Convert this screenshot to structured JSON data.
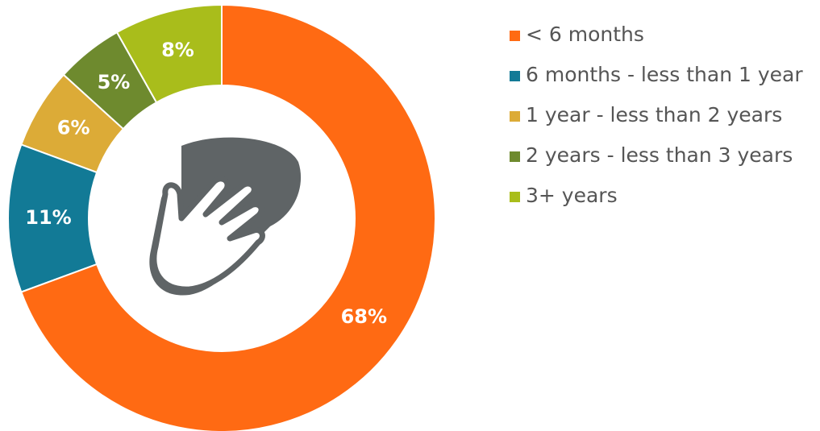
{
  "chart_data": {
    "type": "donut",
    "categories": [
      "< 6 months",
      "6 months - less than 1 year",
      "1 year - less than 2 years",
      "2 years - less than 3 years",
      "3+ years"
    ],
    "values": [
      68,
      11,
      6,
      5,
      8
    ],
    "value_labels": [
      "68%",
      "11%",
      "6%",
      "5%",
      "8%"
    ],
    "colors": [
      "#ff6a13",
      "#127a96",
      "#dcab37",
      "#6e8a2e",
      "#a9bd1b"
    ],
    "legend": "right"
  }
}
